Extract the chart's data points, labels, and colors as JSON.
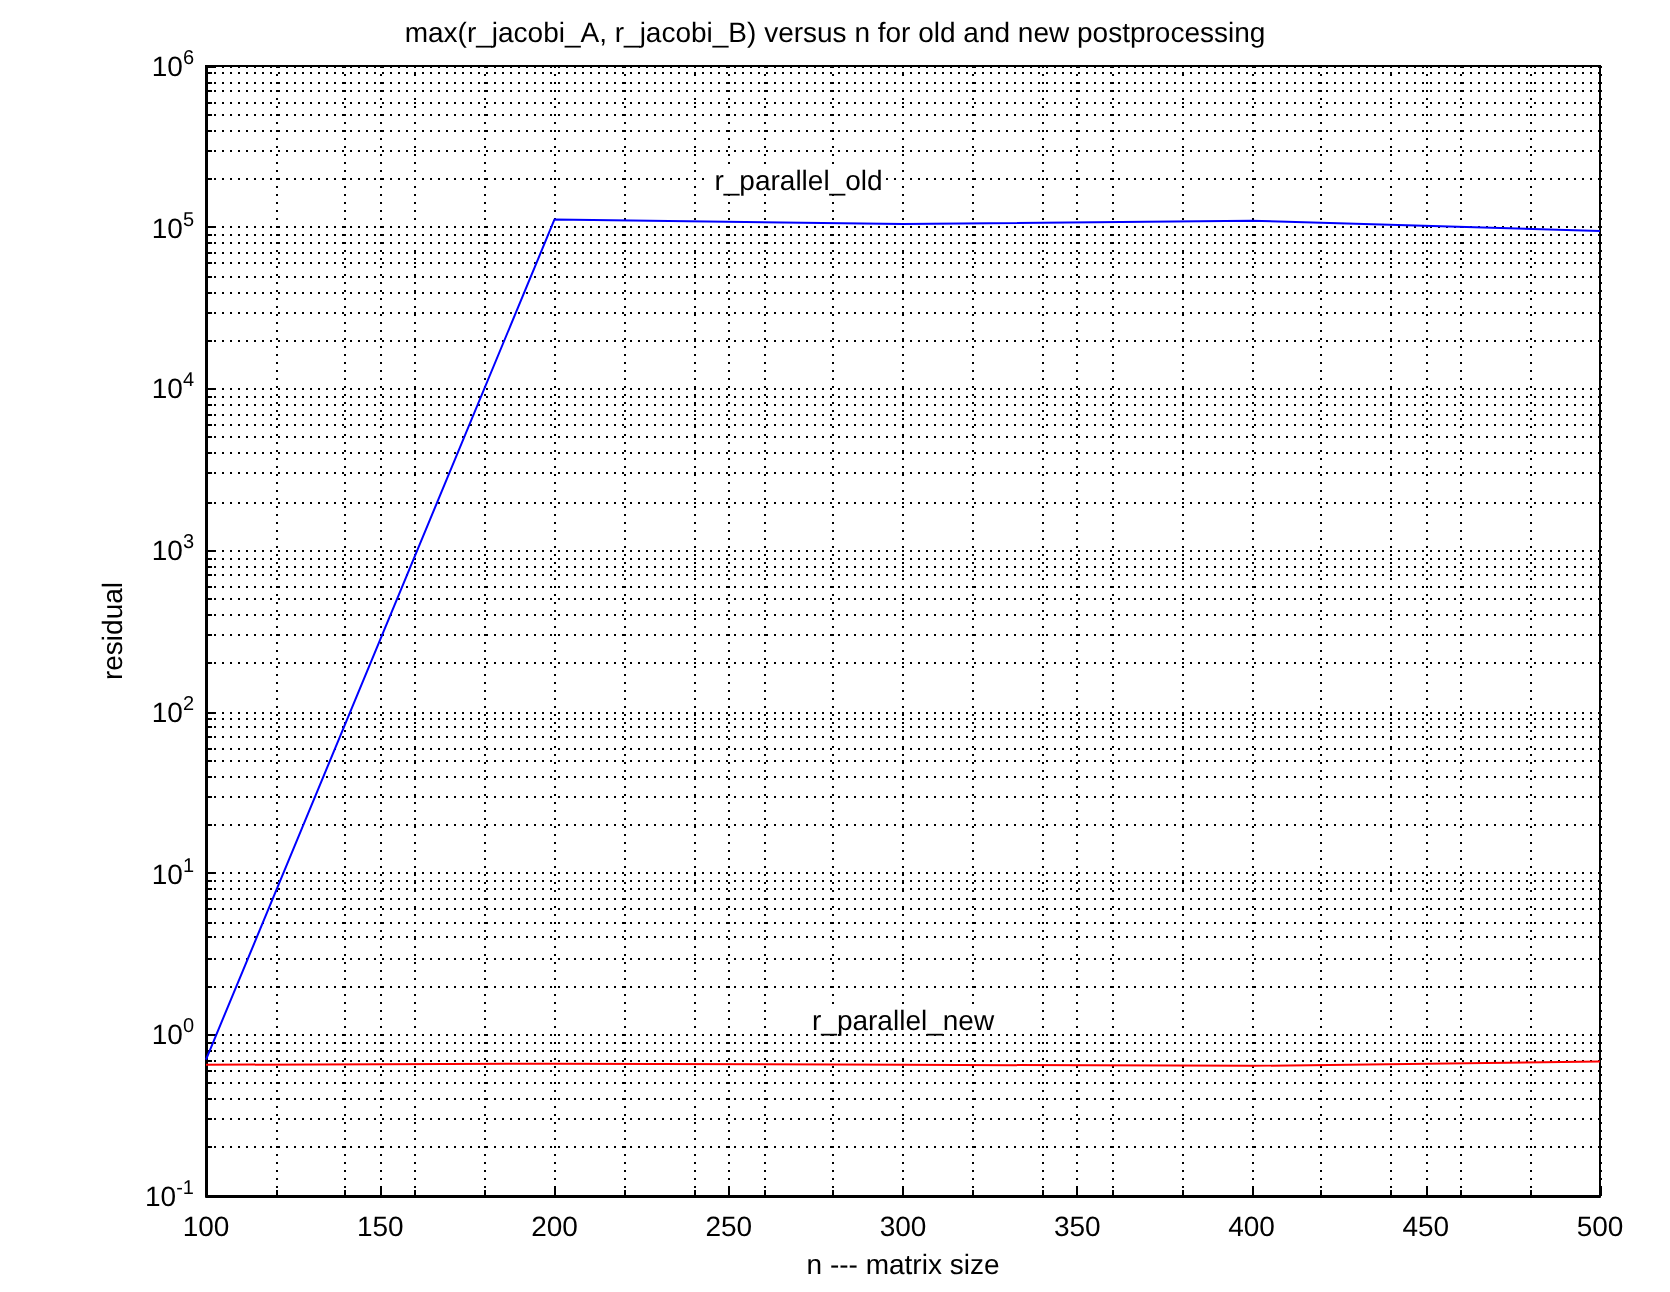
{
  "chart_data": {
    "type": "line",
    "title": "max(r_jacobi_A, r_jacobi_B) versus n for old and new postprocessing",
    "xlabel": "n --- matrix size",
    "ylabel": "residual",
    "x": [
      100,
      200,
      300,
      400,
      500
    ],
    "series": [
      {
        "name": "r_parallel_old",
        "color": "#0000ff",
        "values": [
          0.7,
          112000,
          105000,
          110000,
          95000
        ]
      },
      {
        "name": "r_parallel_new",
        "color": "#ff0000",
        "values": [
          0.65,
          0.66,
          0.65,
          0.64,
          0.68
        ]
      }
    ],
    "log": "y",
    "grid": true,
    "marker": "none",
    "line_style": "solid",
    "xlim": [
      100,
      500
    ],
    "xticks": [
      100,
      150,
      200,
      250,
      300,
      350,
      400,
      450,
      500
    ],
    "ylim": [
      0.1,
      1000000
    ],
    "yticks": [
      {
        "value": 0.1,
        "label": "10$^{-1}$"
      },
      {
        "value": 1,
        "label": "10$^{0}$"
      },
      {
        "value": 10,
        "label": "10$^{1}$"
      },
      {
        "value": 100,
        "label": "10$^{2}$"
      },
      {
        "value": 1000,
        "label": "10$^{3}$"
      },
      {
        "value": 10000,
        "label": "10$^{4}$"
      },
      {
        "value": 100000,
        "label": "10$^{5}$"
      },
      {
        "value": 1000000,
        "label": "10$^{6}$"
      }
    ],
    "legend": false
  }
}
